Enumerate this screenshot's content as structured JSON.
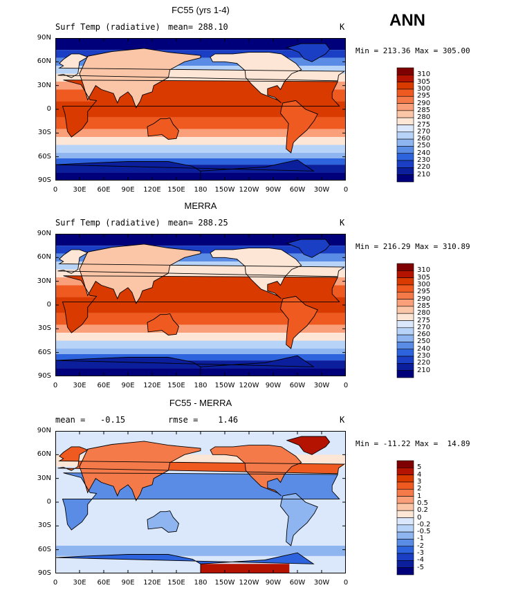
{
  "season_label": "ANN",
  "axes": {
    "lat_ticks": [
      "90N",
      "60N",
      "30N",
      "0",
      "30S",
      "60S",
      "90S"
    ],
    "lon_ticks": [
      "0",
      "30E",
      "60E",
      "90E",
      "120E",
      "150E",
      "180",
      "150W",
      "120W",
      "90W",
      "60W",
      "30W",
      "0"
    ]
  },
  "panels": [
    {
      "title": "FC55 (yrs 1-4)",
      "left_label": "Surf Temp (radiative)",
      "center_label": "mean= 288.10",
      "units": "K",
      "minmax": "Min = 213.36 Max = 305.00",
      "kind": "abs",
      "colorbar": [
        "310",
        "305",
        "300",
        "295",
        "290",
        "285",
        "280",
        "275",
        "270",
        "260",
        "250",
        "240",
        "230",
        "220",
        "210"
      ]
    },
    {
      "title": "MERRA",
      "left_label": "Surf Temp (radiative)",
      "center_label": "mean= 288.25",
      "units": "K",
      "minmax": "Min = 216.29 Max = 310.89",
      "kind": "abs",
      "colorbar": [
        "310",
        "305",
        "300",
        "295",
        "290",
        "285",
        "280",
        "275",
        "270",
        "260",
        "250",
        "240",
        "230",
        "220",
        "210"
      ]
    },
    {
      "title": "FC55 - MERRA",
      "left_label": "mean =   -0.15",
      "center_label": "rmse =    1.46",
      "units": "K",
      "minmax": "Min = -11.22 Max =  14.89",
      "kind": "diff",
      "colorbar": [
        "5",
        "4",
        "3",
        "2",
        "1",
        "0.5",
        "0.2",
        "0",
        "-0.2",
        "-0.5",
        "-1",
        "-2",
        "-3",
        "-4",
        "-5"
      ]
    }
  ],
  "colors": {
    "abs_scale": [
      "#7f0000",
      "#b31300",
      "#d93a00",
      "#ee5a20",
      "#f57a4a",
      "#f9a07a",
      "#fbc6a8",
      "#fde6d6",
      "#dbe8fb",
      "#b8d3f8",
      "#8fb5f1",
      "#5a8ce6",
      "#2d63dc",
      "#1a3ec4",
      "#0b1e9c",
      "#00007a"
    ],
    "diff_scale": [
      "#7f0000",
      "#b31300",
      "#d93a00",
      "#ee5a20",
      "#f57a4a",
      "#f9a07a",
      "#fbc6a8",
      "#fde6d6",
      "#dbe8fb",
      "#b8d3f8",
      "#8fb5f1",
      "#5a8ce6",
      "#2d63dc",
      "#1a3ec4",
      "#0b1e9c",
      "#00007a"
    ]
  }
}
